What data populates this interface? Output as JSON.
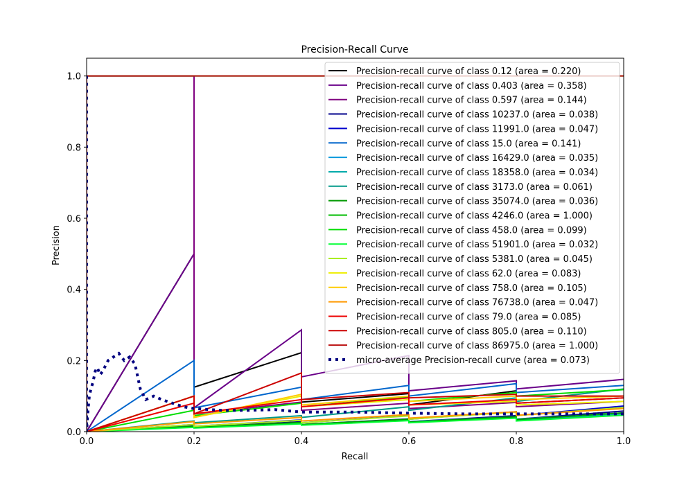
{
  "chart_data": {
    "type": "line",
    "title": "Precision-Recall Curve",
    "xlabel": "Recall",
    "ylabel": "Precision",
    "xlim": [
      0.0,
      1.0
    ],
    "ylim": [
      0.0,
      1.05
    ],
    "xticks": [
      "0.0",
      "0.2",
      "0.4",
      "0.6",
      "0.8",
      "1.0"
    ],
    "yticks": [
      "0.0",
      "0.2",
      "0.4",
      "0.6",
      "0.8",
      "1.0"
    ],
    "grid": false,
    "legend_position": "top-right",
    "series": [
      {
        "name": "Precision-recall curve of class 0.12 (area = 0.220)",
        "color": "#000000",
        "x": [
          0,
          0,
          0.2,
          0.2,
          0.4,
          0.4,
          0.6,
          0.6,
          0.8,
          0.8,
          1.0
        ],
        "y": [
          1,
          0,
          0.5,
          0.125,
          0.222,
          0.083,
          0.107,
          0.075,
          0.115,
          0.08,
          0.095
        ]
      },
      {
        "name": "Precision-recall curve of class 0.403 (area = 0.358)",
        "color": "#6a0089",
        "x": [
          0,
          0,
          0.2,
          0.2,
          0.4,
          0.4,
          0.6,
          0.6,
          0.8,
          0.8,
          1.0
        ],
        "y": [
          1,
          0,
          0.5,
          0.067,
          0.286,
          0.154,
          0.214,
          0.115,
          0.143,
          0.12,
          0.147
        ]
      },
      {
        "name": "Precision-recall curve of class 0.597 (area = 0.144)",
        "color": "#800080",
        "x": [
          0,
          0,
          0.2,
          0.2,
          0.4,
          0.4,
          0.6,
          0.6,
          0.8,
          0.8,
          1.0
        ],
        "y": [
          1,
          1,
          1,
          0.05,
          0.083,
          0.06,
          0.08,
          0.065,
          0.082,
          0.07,
          0.085
        ]
      },
      {
        "name": "Precision-recall curve of class 10237.0 (area = 0.038)",
        "color": "#00008b",
        "x": [
          0,
          0,
          0.2,
          0.2,
          0.4,
          0.4,
          0.6,
          0.6,
          0.8,
          0.8,
          1.0
        ],
        "y": [
          1,
          0,
          0.018,
          0.012,
          0.028,
          0.02,
          0.036,
          0.028,
          0.045,
          0.035,
          0.058
        ]
      },
      {
        "name": "Precision-recall curve of class 11991.0 (area = 0.047)",
        "color": "#0000cd",
        "x": [
          0,
          0,
          0.2,
          0.2,
          0.4,
          0.4,
          0.6,
          0.6,
          0.8,
          0.8,
          1.0
        ],
        "y": [
          1,
          0,
          0.02,
          0.015,
          0.033,
          0.025,
          0.045,
          0.035,
          0.056,
          0.045,
          0.072
        ]
      },
      {
        "name": "Precision-recall curve of class 15.0 (area = 0.141)",
        "color": "#0066cc",
        "x": [
          0,
          0,
          0.2,
          0.2,
          0.4,
          0.4,
          0.6,
          0.6,
          0.8,
          0.8,
          1.0
        ],
        "y": [
          1,
          0,
          0.2,
          0.067,
          0.125,
          0.09,
          0.13,
          0.1,
          0.135,
          0.11,
          0.13
        ]
      },
      {
        "name": "Precision-recall curve of class 16429.0 (area = 0.035)",
        "color": "#0099dd",
        "x": [
          0,
          0,
          0.2,
          0.2,
          0.4,
          0.4,
          0.6,
          0.6,
          0.8,
          0.8,
          1.0
        ],
        "y": [
          1,
          0,
          0.015,
          0.012,
          0.025,
          0.02,
          0.035,
          0.028,
          0.042,
          0.035,
          0.052
        ]
      },
      {
        "name": "Precision-recall curve of class 18358.0 (area = 0.034)",
        "color": "#00aaaa",
        "x": [
          0,
          0,
          0.2,
          0.2,
          0.4,
          0.4,
          0.6,
          0.6,
          0.8,
          0.8,
          1.0
        ],
        "y": [
          1,
          0,
          0.015,
          0.012,
          0.025,
          0.02,
          0.033,
          0.026,
          0.04,
          0.032,
          0.05
        ]
      },
      {
        "name": "Precision-recall curve of class 3173.0 (area = 0.061)",
        "color": "#009988",
        "x": [
          0,
          0,
          0.2,
          0.2,
          0.4,
          0.4,
          0.6,
          0.6,
          0.8,
          0.8,
          1.0
        ],
        "y": [
          1,
          0,
          0.03,
          0.025,
          0.045,
          0.04,
          0.07,
          0.06,
          0.095,
          0.085,
          0.12
        ]
      },
      {
        "name": "Precision-recall curve of class 35074.0 (area = 0.036)",
        "color": "#009900",
        "x": [
          0,
          0,
          0.2,
          0.2,
          0.4,
          0.4,
          0.6,
          0.6,
          0.8,
          0.8,
          1.0
        ],
        "y": [
          1,
          0,
          0.015,
          0.012,
          0.026,
          0.02,
          0.035,
          0.027,
          0.042,
          0.034,
          0.053
        ]
      },
      {
        "name": "Precision-recall curve of class 4246.0 (area = 1.000)",
        "color": "#00bb00",
        "x": [
          0,
          1.0
        ],
        "y": [
          1,
          1
        ]
      },
      {
        "name": "Precision-recall curve of class 458.0 (area = 0.099)",
        "color": "#00dd00",
        "x": [
          0,
          0,
          0.2,
          0.2,
          0.4,
          0.4,
          0.6,
          0.6,
          0.8,
          0.8,
          1.0
        ],
        "y": [
          1,
          0,
          0.06,
          0.045,
          0.08,
          0.07,
          0.098,
          0.085,
          0.11,
          0.1,
          0.118
        ]
      },
      {
        "name": "Precision-recall curve of class 51901.0 (area = 0.032)",
        "color": "#00ff33",
        "x": [
          0,
          0,
          0.2,
          0.2,
          0.4,
          0.4,
          0.6,
          0.6,
          0.8,
          0.8,
          1.0
        ],
        "y": [
          1,
          0,
          0.012,
          0.01,
          0.022,
          0.018,
          0.031,
          0.025,
          0.038,
          0.03,
          0.046
        ]
      },
      {
        "name": "Precision-recall curve of class 5381.0 (area = 0.045)",
        "color": "#aaee22",
        "x": [
          0,
          0,
          0.2,
          0.2,
          0.4,
          0.4,
          0.6,
          0.6,
          0.8,
          0.8,
          1.0
        ],
        "y": [
          1,
          0,
          0.02,
          0.015,
          0.032,
          0.025,
          0.044,
          0.035,
          0.055,
          0.045,
          0.068
        ]
      },
      {
        "name": "Precision-recall curve of class 62.0 (area = 0.083)",
        "color": "#eeee00",
        "x": [
          0,
          0,
          0.2,
          0.2,
          0.4,
          0.4,
          0.6,
          0.6,
          0.8,
          0.8,
          1.0
        ],
        "y": [
          1,
          0,
          0.1,
          0.04,
          0.1,
          0.07,
          0.09,
          0.075,
          0.085,
          0.075,
          0.085
        ]
      },
      {
        "name": "Precision-recall curve of class 758.0 (area = 0.105)",
        "color": "#ffcc00",
        "x": [
          0,
          0,
          0.2,
          0.2,
          0.4,
          0.4,
          0.6,
          0.6,
          0.8,
          0.8,
          1.0
        ],
        "y": [
          1,
          0,
          0.1,
          0.04,
          0.105,
          0.075,
          0.1,
          0.085,
          0.1,
          0.09,
          0.1
        ]
      },
      {
        "name": "Precision-recall curve of class 76738.0 (area = 0.047)",
        "color": "#ff9900",
        "x": [
          0,
          0,
          0.2,
          0.2,
          0.4,
          0.4,
          0.6,
          0.6,
          0.8,
          0.8,
          1.0
        ],
        "y": [
          1,
          0,
          0.028,
          0.022,
          0.04,
          0.03,
          0.048,
          0.038,
          0.056,
          0.046,
          0.065
        ]
      },
      {
        "name": "Precision-recall curve of class 79.0 (area = 0.085)",
        "color": "#ee0000",
        "x": [
          0,
          0,
          0.2,
          0.2,
          0.4,
          0.4,
          0.6,
          0.6,
          0.8,
          0.8,
          1.0
        ],
        "y": [
          1,
          0,
          0.08,
          0.05,
          0.09,
          0.07,
          0.095,
          0.075,
          0.09,
          0.08,
          0.095
        ]
      },
      {
        "name": "Precision-recall curve of class 805.0 (area = 0.110)",
        "color": "#cc0000",
        "x": [
          0,
          0,
          0.2,
          0.2,
          0.4,
          0.4,
          0.6,
          0.6,
          0.8,
          0.8,
          1.0
        ],
        "y": [
          1,
          0,
          0.1,
          0.05,
          0.165,
          0.09,
          0.11,
          0.095,
          0.105,
          0.1,
          0.1
        ]
      },
      {
        "name": "Precision-recall curve of class 86975.0 (area = 1.000)",
        "color": "#bb1111",
        "x": [
          0,
          1.0
        ],
        "y": [
          1,
          1
        ]
      },
      {
        "name": "micro-average Precision-recall curve (area = 0.073)",
        "color": "#000080",
        "dotted": true,
        "x": [
          0,
          0,
          0.002,
          0.005,
          0.008,
          0.012,
          0.016,
          0.02,
          0.025,
          0.03,
          0.04,
          0.05,
          0.06,
          0.07,
          0.08,
          0.09,
          0.1,
          0.11,
          0.125,
          0.14,
          0.16,
          0.18,
          0.2,
          0.25,
          0.3,
          0.35,
          0.4,
          0.5,
          0.6,
          0.7,
          0.8,
          0.9,
          1.0
        ],
        "y": [
          1,
          0,
          0.05,
          0.1,
          0.12,
          0.14,
          0.17,
          0.18,
          0.16,
          0.17,
          0.2,
          0.21,
          0.22,
          0.2,
          0.21,
          0.19,
          0.12,
          0.09,
          0.1,
          0.09,
          0.08,
          0.07,
          0.065,
          0.06,
          0.06,
          0.062,
          0.055,
          0.055,
          0.052,
          0.05,
          0.05,
          0.05,
          0.05
        ]
      }
    ]
  }
}
